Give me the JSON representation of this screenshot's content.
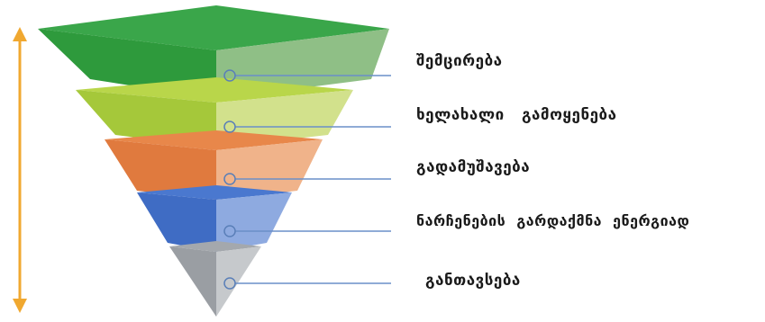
{
  "diagram": {
    "tiers": [
      {
        "label": "შემცირება",
        "front_color": "#2e9a3c",
        "side_color": "#8fbf86",
        "top_color": "#3aa64a"
      },
      {
        "label": "ხელახალი   გამოყენება",
        "front_color": "#a5c83a",
        "side_color": "#d2e18c",
        "top_color": "#b9d64a"
      },
      {
        "label": "გადამუშავება",
        "front_color": "#e07a3e",
        "side_color": "#f0b38a",
        "top_color": "#e8874a"
      },
      {
        "label": "ნარჩენების  გარდაქმნა  ენერგიად",
        "front_color": "#3f6cc4",
        "side_color": "#8eaae0",
        "top_color": "#4a78cf"
      },
      {
        "label": "განთავსება",
        "front_color": "#9a9ea3",
        "side_color": "#c6c9cc",
        "top_color": "#a4a8ad"
      }
    ],
    "arrow_color": "#f0a830",
    "line_color": "#6a8fc8"
  }
}
